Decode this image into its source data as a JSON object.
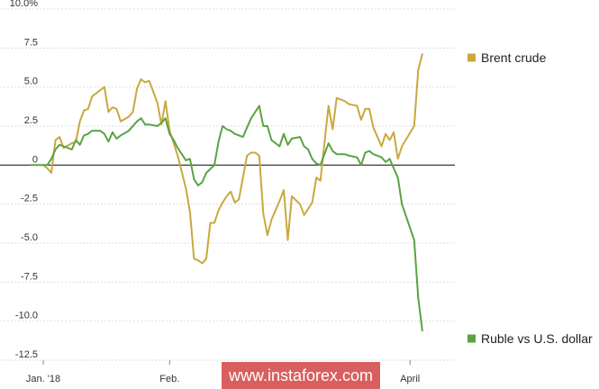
{
  "chart_data": {
    "type": "line",
    "title": "",
    "xlabel": "",
    "ylabel": "",
    "ylim": [
      -12.5,
      10.0
    ],
    "yticks": [
      10.0,
      7.5,
      5.0,
      2.5,
      0,
      -2.5,
      -5.0,
      -7.5,
      -10.0,
      -12.5
    ],
    "ytick_labels": [
      "10.0%",
      "7.5",
      "5.0",
      "2.5",
      "0",
      "-2.5",
      "-5.0",
      "-7.5",
      "-10.0",
      "-12.5"
    ],
    "xlim": [
      "2018-01-01",
      "2018-04-12"
    ],
    "xticks": [
      {
        "label": "Jan. '18",
        "date": "2018-01-01"
      },
      {
        "label": "Feb.",
        "date": "2018-02-01"
      },
      {
        "label": "April",
        "date": "2018-04-01"
      }
    ],
    "grid": "horizontal",
    "legend_placement": "right",
    "series": [
      {
        "name": "Brent crude",
        "color": "#c8a93f",
        "points": [
          [
            "2018-01-01",
            0.0
          ],
          [
            "2018-01-02",
            -0.2
          ],
          [
            "2018-01-03",
            -0.5
          ],
          [
            "2018-01-04",
            1.6
          ],
          [
            "2018-01-05",
            1.8
          ],
          [
            "2018-01-06",
            1.1
          ],
          [
            "2018-01-08",
            1.4
          ],
          [
            "2018-01-09",
            1.5
          ],
          [
            "2018-01-10",
            2.8
          ],
          [
            "2018-01-11",
            3.5
          ],
          [
            "2018-01-12",
            3.6
          ],
          [
            "2018-01-13",
            4.4
          ],
          [
            "2018-01-15",
            4.8
          ],
          [
            "2018-01-16",
            5.0
          ],
          [
            "2018-01-17",
            3.4
          ],
          [
            "2018-01-18",
            3.7
          ],
          [
            "2018-01-19",
            3.6
          ],
          [
            "2018-01-20",
            2.8
          ],
          [
            "2018-01-22",
            3.1
          ],
          [
            "2018-01-23",
            3.4
          ],
          [
            "2018-01-24",
            4.9
          ],
          [
            "2018-01-25",
            5.5
          ],
          [
            "2018-01-26",
            5.3
          ],
          [
            "2018-01-27",
            5.4
          ],
          [
            "2018-01-29",
            4.0
          ],
          [
            "2018-01-30",
            2.6
          ],
          [
            "2018-01-31",
            4.1
          ],
          [
            "2018-02-01",
            2.2
          ],
          [
            "2018-02-02",
            1.4
          ],
          [
            "2018-02-03",
            0.6
          ],
          [
            "2018-02-05",
            -1.5
          ],
          [
            "2018-02-06",
            -3.0
          ],
          [
            "2018-02-07",
            -6.0
          ],
          [
            "2018-02-08",
            -6.1
          ],
          [
            "2018-02-09",
            -6.3
          ],
          [
            "2018-02-10",
            -6.0
          ],
          [
            "2018-02-11",
            -3.7
          ],
          [
            "2018-02-12",
            -3.7
          ],
          [
            "2018-02-13",
            -2.9
          ],
          [
            "2018-02-14",
            -2.4
          ],
          [
            "2018-02-15",
            -2.0
          ],
          [
            "2018-02-16",
            -1.7
          ],
          [
            "2018-02-17",
            -2.4
          ],
          [
            "2018-02-18",
            -2.2
          ],
          [
            "2018-02-20",
            0.6
          ],
          [
            "2018-02-21",
            0.8
          ],
          [
            "2018-02-22",
            0.8
          ],
          [
            "2018-02-23",
            0.6
          ],
          [
            "2018-02-24",
            -3.1
          ],
          [
            "2018-02-25",
            -4.5
          ],
          [
            "2018-02-26",
            -3.5
          ],
          [
            "2018-02-28",
            -2.3
          ],
          [
            "2018-03-01",
            -1.6
          ],
          [
            "2018-03-02",
            -4.8
          ],
          [
            "2018-03-03",
            -2.0
          ],
          [
            "2018-03-05",
            -2.5
          ],
          [
            "2018-03-06",
            -3.2
          ],
          [
            "2018-03-07",
            -2.8
          ],
          [
            "2018-03-08",
            -2.4
          ],
          [
            "2018-03-09",
            -0.8
          ],
          [
            "2018-03-10",
            -1.0
          ],
          [
            "2018-03-12",
            3.8
          ],
          [
            "2018-03-13",
            2.3
          ],
          [
            "2018-03-14",
            4.3
          ],
          [
            "2018-03-16",
            4.1
          ],
          [
            "2018-03-17",
            3.9
          ],
          [
            "2018-03-19",
            3.8
          ],
          [
            "2018-03-20",
            2.9
          ],
          [
            "2018-03-21",
            3.6
          ],
          [
            "2018-03-22",
            3.6
          ],
          [
            "2018-03-23",
            2.4
          ],
          [
            "2018-03-25",
            1.2
          ],
          [
            "2018-03-26",
            2.0
          ],
          [
            "2018-03-27",
            1.6
          ],
          [
            "2018-03-28",
            2.1
          ],
          [
            "2018-03-29",
            0.4
          ],
          [
            "2018-03-30",
            1.2
          ],
          [
            "2018-04-02",
            2.5
          ],
          [
            "2018-04-03",
            6.1
          ],
          [
            "2018-04-04",
            7.1
          ]
        ]
      },
      {
        "name": "Ruble vs U.S. dollar",
        "color": "#5aa345",
        "points": [
          [
            "2017-12-29",
            0.0
          ],
          [
            "2018-01-02",
            0.0
          ],
          [
            "2018-01-03",
            0.4
          ],
          [
            "2018-01-04",
            1.0
          ],
          [
            "2018-01-05",
            1.3
          ],
          [
            "2018-01-06",
            1.2
          ],
          [
            "2018-01-08",
            1.0
          ],
          [
            "2018-01-09",
            1.6
          ],
          [
            "2018-01-10",
            1.3
          ],
          [
            "2018-01-11",
            1.9
          ],
          [
            "2018-01-12",
            2.0
          ],
          [
            "2018-01-13",
            2.2
          ],
          [
            "2018-01-15",
            2.2
          ],
          [
            "2018-01-16",
            2.0
          ],
          [
            "2018-01-17",
            1.5
          ],
          [
            "2018-01-18",
            2.1
          ],
          [
            "2018-01-19",
            1.7
          ],
          [
            "2018-01-20",
            1.9
          ],
          [
            "2018-01-22",
            2.2
          ],
          [
            "2018-01-23",
            2.5
          ],
          [
            "2018-01-24",
            2.8
          ],
          [
            "2018-01-25",
            3.0
          ],
          [
            "2018-01-26",
            2.6
          ],
          [
            "2018-01-27",
            2.6
          ],
          [
            "2018-01-29",
            2.5
          ],
          [
            "2018-01-30",
            2.7
          ],
          [
            "2018-01-31",
            3.0
          ],
          [
            "2018-02-01",
            2.0
          ],
          [
            "2018-02-02",
            1.6
          ],
          [
            "2018-02-03",
            1.1
          ],
          [
            "2018-02-05",
            0.3
          ],
          [
            "2018-02-06",
            0.4
          ],
          [
            "2018-02-07",
            -0.9
          ],
          [
            "2018-02-08",
            -1.3
          ],
          [
            "2018-02-09",
            -1.1
          ],
          [
            "2018-02-10",
            -0.5
          ],
          [
            "2018-02-12",
            0.0
          ],
          [
            "2018-02-13",
            1.5
          ],
          [
            "2018-02-14",
            2.5
          ],
          [
            "2018-02-15",
            2.3
          ],
          [
            "2018-02-16",
            2.2
          ],
          [
            "2018-02-17",
            2.0
          ],
          [
            "2018-02-19",
            1.8
          ],
          [
            "2018-02-20",
            2.4
          ],
          [
            "2018-02-21",
            3.0
          ],
          [
            "2018-02-22",
            3.4
          ],
          [
            "2018-02-23",
            3.8
          ],
          [
            "2018-02-24",
            2.5
          ],
          [
            "2018-02-25",
            2.5
          ],
          [
            "2018-02-26",
            1.6
          ],
          [
            "2018-02-28",
            1.2
          ],
          [
            "2018-03-01",
            2.0
          ],
          [
            "2018-03-02",
            1.3
          ],
          [
            "2018-03-03",
            1.7
          ],
          [
            "2018-03-05",
            1.8
          ],
          [
            "2018-03-06",
            1.2
          ],
          [
            "2018-03-07",
            1.0
          ],
          [
            "2018-03-08",
            0.4
          ],
          [
            "2018-03-09",
            0.1
          ],
          [
            "2018-03-10",
            0.0
          ],
          [
            "2018-03-12",
            1.4
          ],
          [
            "2018-03-13",
            0.9
          ],
          [
            "2018-03-14",
            0.7
          ],
          [
            "2018-03-16",
            0.7
          ],
          [
            "2018-03-17",
            0.6
          ],
          [
            "2018-03-19",
            0.5
          ],
          [
            "2018-03-20",
            0.0
          ],
          [
            "2018-03-21",
            0.8
          ],
          [
            "2018-03-22",
            0.9
          ],
          [
            "2018-03-23",
            0.7
          ],
          [
            "2018-03-25",
            0.5
          ],
          [
            "2018-03-26",
            0.2
          ],
          [
            "2018-03-27",
            0.4
          ],
          [
            "2018-03-28",
            -0.2
          ],
          [
            "2018-03-29",
            -0.8
          ],
          [
            "2018-03-30",
            -2.5
          ],
          [
            "2018-04-02",
            -4.8
          ],
          [
            "2018-04-03",
            -8.5
          ],
          [
            "2018-04-04",
            -10.6
          ]
        ]
      }
    ]
  },
  "watermark": {
    "text": "www.instaforex.com",
    "color": "#d95f5f"
  }
}
